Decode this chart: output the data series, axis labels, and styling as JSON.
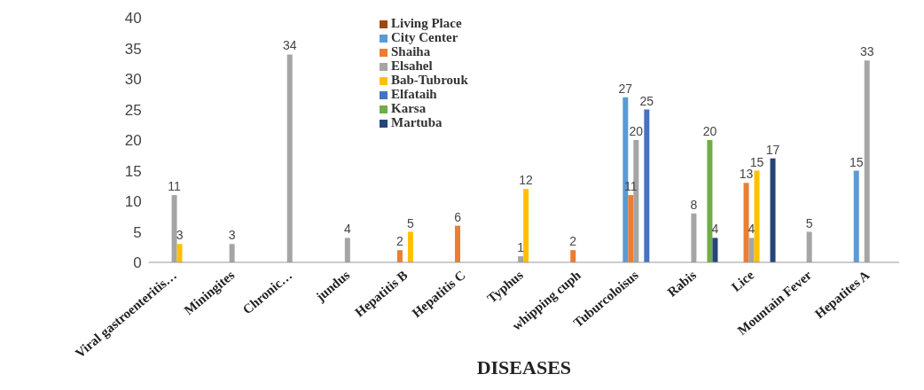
{
  "chart_data": {
    "type": "bar",
    "xlabel": "DISEASES",
    "categories": [
      "Viral gastroenteritis…",
      "Miningites",
      "Chronic…",
      "jundus",
      "Hepatitis B",
      "Hepatitis C",
      "Typhus",
      "whipping cuph",
      "Tuburcoloisus",
      "Rabis",
      "Lice",
      "Mountain Fever",
      "Hepatites A"
    ],
    "series": [
      {
        "name": "Living Place",
        "color": "#9e480e",
        "values": [
          null,
          null,
          null,
          null,
          null,
          null,
          null,
          null,
          null,
          null,
          null,
          null,
          null
        ]
      },
      {
        "name": "City Center",
        "color": "#5b9bd5",
        "values": [
          null,
          null,
          null,
          null,
          null,
          null,
          null,
          null,
          27,
          null,
          null,
          null,
          15
        ]
      },
      {
        "name": "Shaiha",
        "color": "#ed7d31",
        "values": [
          null,
          null,
          null,
          null,
          2,
          6,
          null,
          2,
          11,
          null,
          13,
          null,
          null
        ]
      },
      {
        "name": "Elsahel",
        "color": "#a5a5a5",
        "values": [
          11,
          3,
          34,
          4,
          null,
          null,
          1,
          null,
          20,
          8,
          4,
          5,
          33
        ]
      },
      {
        "name": "Bab-Tubrouk",
        "color": "#ffc000",
        "values": [
          3,
          null,
          null,
          null,
          5,
          null,
          12,
          null,
          null,
          null,
          15,
          null,
          null
        ]
      },
      {
        "name": "Elfataih",
        "color": "#4472c4",
        "values": [
          null,
          null,
          null,
          null,
          null,
          null,
          null,
          null,
          25,
          null,
          null,
          null,
          null
        ]
      },
      {
        "name": "Karsa",
        "color": "#70ad47",
        "values": [
          null,
          null,
          null,
          null,
          null,
          null,
          null,
          null,
          null,
          20,
          null,
          null,
          null
        ]
      },
      {
        "name": "Martuba",
        "color": "#264478",
        "values": [
          null,
          null,
          null,
          null,
          null,
          null,
          null,
          null,
          null,
          4,
          17,
          null,
          null
        ]
      }
    ],
    "ylim": [
      0,
      40
    ],
    "yticks": [
      0,
      5,
      10,
      15,
      20,
      25,
      30,
      35,
      40
    ],
    "grid": false,
    "legend": "top",
    "data_labels": true
  }
}
